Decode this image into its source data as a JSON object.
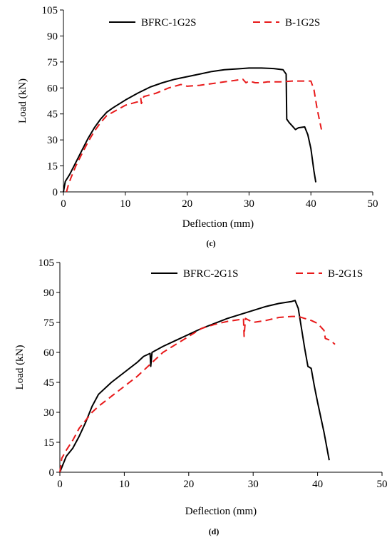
{
  "chart_data": [
    {
      "type": "line",
      "panel_label": "(c)",
      "xlabel": "Deflection (mm)",
      "ylabel": "Load (kN)",
      "xlim": [
        0,
        50
      ],
      "ylim": [
        0,
        105
      ],
      "xticks": [
        0,
        10,
        20,
        30,
        40,
        50
      ],
      "yticks": [
        0,
        15,
        30,
        45,
        60,
        75,
        90,
        105
      ],
      "grid": false,
      "legend_position": "top",
      "series": [
        {
          "name": "BFRC-1G2S",
          "color": "#000000",
          "style": "solid",
          "points": [
            [
              0,
              0
            ],
            [
              0.3,
              6
            ],
            [
              1,
              10
            ],
            [
              2,
              17
            ],
            [
              3,
              24
            ],
            [
              4,
              31
            ],
            [
              5,
              37
            ],
            [
              6,
              42
            ],
            [
              7,
              46
            ],
            [
              8,
              48.5
            ],
            [
              10,
              53
            ],
            [
              12,
              57
            ],
            [
              14,
              60.5
            ],
            [
              16,
              63
            ],
            [
              18,
              65
            ],
            [
              20,
              66.5
            ],
            [
              22,
              68
            ],
            [
              24,
              69.5
            ],
            [
              26,
              70.5
            ],
            [
              28,
              71
            ],
            [
              30,
              71.5
            ],
            [
              32,
              71.5
            ],
            [
              34,
              71.2
            ],
            [
              35.5,
              70.5
            ],
            [
              36,
              68
            ],
            [
              36.1,
              42
            ],
            [
              36.5,
              40
            ],
            [
              37,
              38
            ],
            [
              37.5,
              36
            ],
            [
              38,
              37
            ],
            [
              39,
              37.5
            ],
            [
              39.5,
              33
            ],
            [
              40,
              25
            ],
            [
              40.5,
              12
            ],
            [
              40.8,
              5.5
            ]
          ]
        },
        {
          "name": "B-1G2S",
          "color": "#e8191a",
          "style": "dashed",
          "points": [
            [
              0.5,
              0
            ],
            [
              0.8,
              4
            ],
            [
              1.2,
              8
            ],
            [
              2,
              15
            ],
            [
              3,
              22
            ],
            [
              4,
              29
            ],
            [
              5,
              35
            ],
            [
              6,
              40
            ],
            [
              7,
              44
            ],
            [
              8,
              46
            ],
            [
              10,
              50
            ],
            [
              12,
              52
            ],
            [
              12.5,
              54
            ],
            [
              12.6,
              51
            ],
            [
              13,
              55
            ],
            [
              15,
              57
            ],
            [
              17,
              60
            ],
            [
              19,
              62
            ],
            [
              20,
              61
            ],
            [
              22,
              61.5
            ],
            [
              24,
              62.5
            ],
            [
              26,
              63.5
            ],
            [
              28,
              64.5
            ],
            [
              29,
              65
            ],
            [
              29.5,
              63
            ],
            [
              30,
              64
            ],
            [
              31,
              63
            ],
            [
              32,
              63
            ],
            [
              33,
              63.5
            ],
            [
              35,
              63.5
            ],
            [
              37,
              64
            ],
            [
              39,
              64
            ],
            [
              40,
              64
            ],
            [
              40.5,
              59
            ],
            [
              41,
              48
            ],
            [
              41.7,
              36
            ]
          ]
        }
      ]
    },
    {
      "type": "line",
      "panel_label": "(d)",
      "xlabel": "Deflection (mm)",
      "ylabel": "Load (kN)",
      "xlim": [
        0,
        50
      ],
      "ylim": [
        0,
        105
      ],
      "xticks": [
        0,
        10,
        20,
        30,
        40,
        50
      ],
      "yticks": [
        0,
        15,
        30,
        45,
        60,
        75,
        90,
        105
      ],
      "grid": false,
      "legend_position": "top",
      "series": [
        {
          "name": "BFRC-2G1S",
          "color": "#000000",
          "style": "solid",
          "points": [
            [
              0,
              0
            ],
            [
              0.5,
              4
            ],
            [
              1,
              8
            ],
            [
              2,
              12
            ],
            [
              3,
              18
            ],
            [
              4,
              25
            ],
            [
              5,
              33
            ],
            [
              6,
              39
            ],
            [
              8,
              45
            ],
            [
              10,
              50
            ],
            [
              12,
              55
            ],
            [
              13,
              58
            ],
            [
              14,
              59.5
            ],
            [
              14.1,
              53
            ],
            [
              14.3,
              60
            ],
            [
              16,
              63
            ],
            [
              18,
              66
            ],
            [
              20,
              69
            ],
            [
              22,
              72
            ],
            [
              24,
              74.5
            ],
            [
              26,
              77
            ],
            [
              28,
              79
            ],
            [
              30,
              81
            ],
            [
              32,
              83
            ],
            [
              34,
              84.5
            ],
            [
              36,
              85.5
            ],
            [
              36.5,
              86
            ],
            [
              37,
              82
            ],
            [
              37.5,
              72
            ],
            [
              38,
              62
            ],
            [
              38.5,
              53
            ],
            [
              39,
              52
            ],
            [
              39.5,
              43
            ],
            [
              40,
              35
            ],
            [
              41,
              20
            ],
            [
              41.8,
              6
            ]
          ]
        },
        {
          "name": "B-2G1S",
          "color": "#e8191a",
          "style": "dashed",
          "points": [
            [
              0,
              0
            ],
            [
              0.3,
              7
            ],
            [
              1,
              11
            ],
            [
              2,
              16
            ],
            [
              3,
              22
            ],
            [
              4,
              26
            ],
            [
              5,
              30
            ],
            [
              6,
              33
            ],
            [
              8,
              38
            ],
            [
              10,
              43
            ],
            [
              12,
              48
            ],
            [
              14,
              54
            ],
            [
              16,
              60
            ],
            [
              18,
              64
            ],
            [
              20,
              68
            ],
            [
              22,
              72
            ],
            [
              24,
              74
            ],
            [
              26,
              75.5
            ],
            [
              28,
              76.5
            ],
            [
              28.5,
              77
            ],
            [
              28.6,
              68
            ],
            [
              28.8,
              77
            ],
            [
              30,
              75
            ],
            [
              32,
              76
            ],
            [
              34,
              77.5
            ],
            [
              36,
              78
            ],
            [
              37,
              78
            ],
            [
              38,
              77
            ],
            [
              39,
              76
            ],
            [
              40,
              74.5
            ],
            [
              41,
              71
            ],
            [
              41.2,
              67
            ],
            [
              42,
              66
            ],
            [
              42.7,
              64
            ]
          ]
        }
      ]
    }
  ]
}
